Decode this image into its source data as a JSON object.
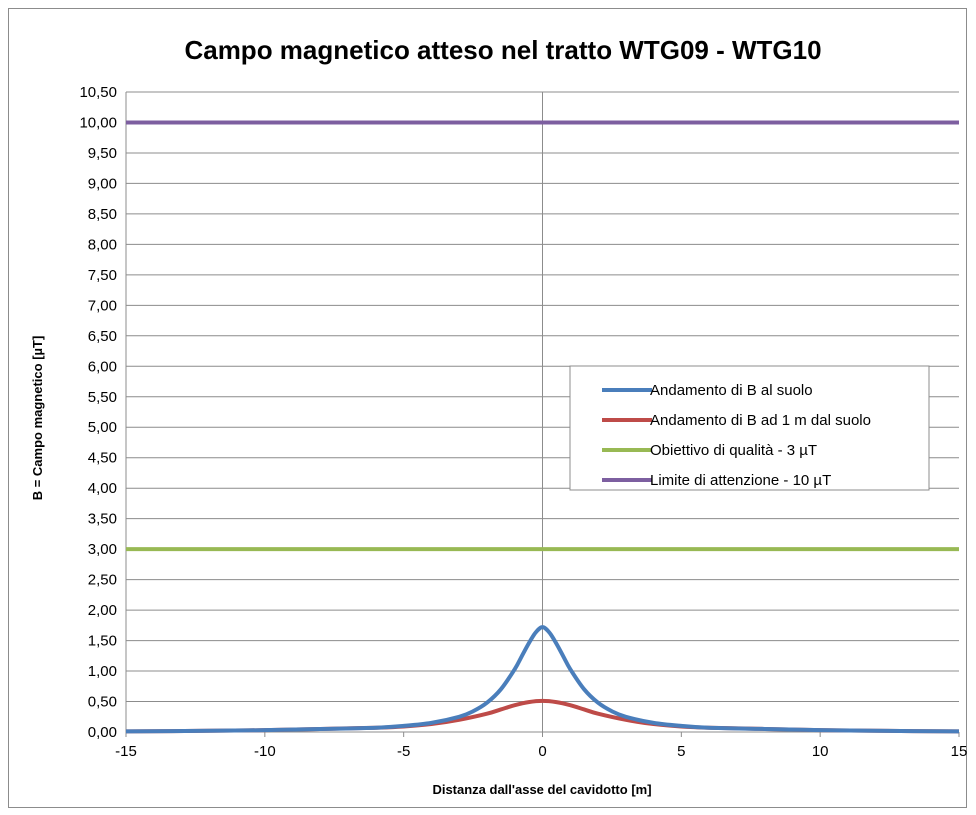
{
  "chart_data": {
    "type": "line",
    "title": "Campo magnetico atteso nel tratto WTG09 - WTG10",
    "xlabel": "Distanza dall'asse del cavidotto [m]",
    "ylabel": "B = Campo magnetico [µT]",
    "xlim": [
      -15,
      15
    ],
    "ylim": [
      0,
      10.5
    ],
    "x_ticks": [
      "-15",
      "-10",
      "-5",
      "0",
      "5",
      "10",
      "15"
    ],
    "y_ticks": [
      "0,00",
      "0,50",
      "1,00",
      "1,50",
      "2,00",
      "2,50",
      "3,00",
      "3,50",
      "4,00",
      "4,50",
      "5,00",
      "5,50",
      "6,00",
      "6,50",
      "7,00",
      "7,50",
      "8,00",
      "8,50",
      "9,00",
      "9,50",
      "10,00",
      "10,50"
    ],
    "grid": "horizontal",
    "legend_position": "right",
    "series": [
      {
        "name": "Andamento di B al suolo",
        "color": "#4a7ebb",
        "x": [
          -15,
          -12,
          -10,
          -8,
          -6,
          -5,
          -4,
          -3,
          -2.5,
          -2,
          -1.5,
          -1,
          -0.75,
          -0.5,
          -0.25,
          0,
          0.25,
          0.5,
          0.75,
          1,
          1.5,
          2,
          2.5,
          3,
          4,
          5,
          6,
          8,
          10,
          12,
          15
        ],
        "y": [
          0.01,
          0.02,
          0.03,
          0.05,
          0.07,
          0.1,
          0.15,
          0.25,
          0.34,
          0.48,
          0.7,
          1.03,
          1.24,
          1.45,
          1.63,
          1.72,
          1.63,
          1.45,
          1.24,
          1.03,
          0.7,
          0.48,
          0.34,
          0.25,
          0.15,
          0.1,
          0.07,
          0.05,
          0.03,
          0.02,
          0.01
        ]
      },
      {
        "name": "Andamento di B ad 1 m dal suolo",
        "color": "#be4b48",
        "x": [
          -15,
          -12,
          -10,
          -8,
          -6,
          -5,
          -4,
          -3,
          -2,
          -1.5,
          -1,
          -0.5,
          0,
          0.5,
          1,
          1.5,
          2,
          3,
          4,
          5,
          6,
          8,
          10,
          12,
          15
        ],
        "y": [
          0.01,
          0.02,
          0.03,
          0.05,
          0.07,
          0.09,
          0.13,
          0.2,
          0.3,
          0.37,
          0.44,
          0.49,
          0.51,
          0.49,
          0.44,
          0.37,
          0.3,
          0.2,
          0.13,
          0.09,
          0.07,
          0.05,
          0.03,
          0.02,
          0.01
        ]
      },
      {
        "name": "Obiettivo di qualità - 3 µT",
        "color": "#98b954",
        "x": [
          -15,
          15
        ],
        "y": [
          3,
          3
        ]
      },
      {
        "name": "Limite di attenzione - 10 µT",
        "color": "#7d5fa0",
        "x": [
          -15,
          15
        ],
        "y": [
          10,
          10
        ]
      }
    ]
  }
}
